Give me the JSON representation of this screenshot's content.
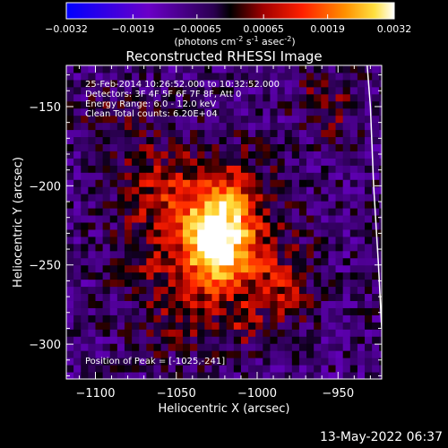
{
  "chart_data": {
    "type": "heatmap",
    "title": "Reconstructed RHESSI Image",
    "xlabel": "Heliocentric X (arcsec)",
    "ylabel": "Heliocentric Y (arcsec)",
    "xlim": [
      -1118,
      -923
    ],
    "ylim": [
      -322,
      -124
    ],
    "xticks": [
      -1100,
      -1050,
      -1000,
      -950
    ],
    "yticks": [
      -150,
      -200,
      -250,
      -300
    ],
    "colorbar": {
      "ticks": [
        -0.0032,
        -0.0019,
        -0.00065,
        0.00065,
        0.0019,
        0.0032
      ],
      "tick_labels": [
        "-0.0032",
        "-0.0019",
        "-0.00065",
        "0.00065",
        "0.0019",
        "0.0032"
      ],
      "range": [
        -0.0032,
        0.0032
      ],
      "units_text": "(photons cm",
      "units_exp1": "-2",
      "units_s": " s",
      "units_exp2": "-1",
      "units_asec": " asec",
      "units_exp3": "-2",
      "units_close": ")"
    },
    "annotations": {
      "time_range": "25-Feb-2014 10:26:52.000 to 10:32:52.000",
      "detectors": "Detectors: 3F 4F 5F 6F 7F 8F, Att 0",
      "energy_range": "Energy Range: 6.0 - 12.0 keV",
      "clean": "Clean     Total counts: 6.20E+04",
      "peak": "Position of Peak = [-1025,-241]"
    },
    "peak": [
      -1025,
      -241
    ],
    "limb_curve": [
      [
        -932,
        -124
      ],
      [
        -930,
        -150
      ],
      [
        -928,
        -200
      ],
      [
        -925,
        -250
      ],
      [
        -923,
        -290
      ]
    ],
    "sources": [
      {
        "x": -1027,
        "y": -236,
        "sx": 13,
        "sy": 20,
        "amp": 0.0032
      },
      {
        "x": -1038,
        "y": -230,
        "sx": 22,
        "sy": 30,
        "amp": 0.0014
      },
      {
        "x": -1065,
        "y": -205,
        "sx": 18,
        "sy": 20,
        "amp": 0.001
      },
      {
        "x": -1015,
        "y": -205,
        "sx": 16,
        "sy": 18,
        "amp": 0.0009
      },
      {
        "x": -1000,
        "y": -250,
        "sx": 18,
        "sy": 20,
        "amp": 0.0011
      },
      {
        "x": -985,
        "y": -272,
        "sx": 12,
        "sy": 14,
        "amp": 0.0008
      },
      {
        "x": -1050,
        "y": -285,
        "sx": 20,
        "sy": 20,
        "amp": 0.0007
      },
      {
        "x": -1090,
        "y": -165,
        "sx": 16,
        "sy": 14,
        "amp": 0.0007
      },
      {
        "x": -960,
        "y": -150,
        "sx": 12,
        "sy": 14,
        "amp": 0.001
      },
      {
        "x": -1010,
        "y": -290,
        "sx": 10,
        "sy": 10,
        "amp": 0.0008
      },
      {
        "x": -1075,
        "y": -255,
        "sx": 12,
        "sy": 12,
        "amp": 0.0006
      }
    ],
    "background_level": -0.0019
  },
  "footer": {
    "timestamp": "13-May-2022 06:37"
  }
}
